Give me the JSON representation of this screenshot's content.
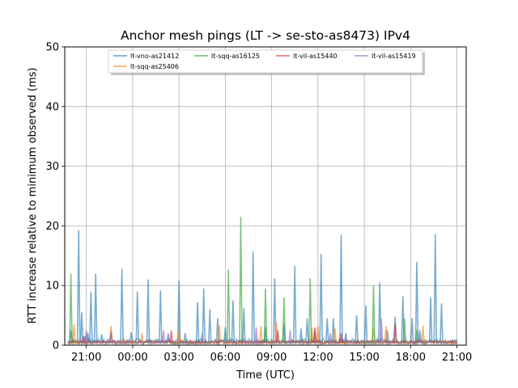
{
  "chart_data": {
    "type": "line",
    "title": "Anchor mesh pings (LT -> se-sto-as8473) IPv4",
    "xlabel": "Time (UTC)",
    "ylabel": "RTT increase relative to minimum observed (ms)",
    "xlim": [
      "19:36",
      "21:36 (+1 day)"
    ],
    "ylim": [
      0,
      50
    ],
    "grid": true,
    "legend_position": "top-center",
    "x_tick_labels": [
      "21:00",
      "00:00",
      "03:00",
      "06:00",
      "09:00",
      "12:00",
      "15:00",
      "18:00",
      "21:00"
    ],
    "y_tick_labels": [
      "0",
      "10",
      "20",
      "30",
      "40",
      "50"
    ],
    "x_unit_note": "hours since 21:00 day 1",
    "series": [
      {
        "name": "lt-vno-as21412",
        "color": "#1f77b4",
        "x": [
          -1.0,
          -0.5,
          -0.3,
          -0.1,
          0.1,
          0.3,
          0.6,
          1.0,
          1.6,
          2.3,
          2.9,
          3.3,
          4.0,
          4.8,
          5.3,
          6.0,
          6.4,
          7.2,
          7.6,
          8.0,
          8.5,
          9.0,
          9.5,
          10.2,
          10.8,
          11.6,
          12.2,
          12.8,
          13.5,
          13.9,
          14.3,
          14.8,
          15.2,
          15.6,
          16.0,
          16.5,
          16.8,
          17.5,
          18.1,
          19.0,
          19.5,
          20.0,
          20.5,
          21.1,
          21.4,
          21.6,
          22.3,
          22.6,
          23.0
        ],
        "y": [
          2.5,
          19.3,
          5.5,
          1.5,
          2.0,
          9.0,
          12.0,
          1.8,
          2.5,
          12.8,
          2.2,
          9.0,
          11.0,
          9.2,
          2.0,
          10.8,
          2.0,
          7.2,
          9.5,
          6.0,
          4.5,
          3.0,
          7.5,
          6.2,
          15.7,
          3.0,
          11.2,
          3.5,
          13.3,
          2.8,
          4.5,
          2.5,
          15.3,
          4.5,
          4.5,
          18.5,
          2.0,
          5.0,
          6.7,
          10.5,
          2.5,
          4.8,
          8.2,
          4.5,
          14.0,
          2.5,
          8.0,
          18.6,
          7.0
        ]
      },
      {
        "name": "lt-sqq-as25406",
        "color": "#ff7f0e",
        "x": [
          -0.8,
          1.6,
          3.6,
          6.0,
          8.6,
          11.3,
          12.3,
          14.6,
          15.0,
          16.1,
          18.6,
          19.4,
          21.8
        ],
        "y": [
          3.5,
          3.2,
          2.0,
          2.5,
          3.4,
          3.2,
          3.8,
          3.0,
          3.2,
          2.8,
          3.0,
          3.2,
          3.3
        ]
      },
      {
        "name": "lt-sqq-as16125",
        "color": "#2ca02c",
        "x": [
          -1.0,
          9.2,
          10.0,
          11.6,
          12.8,
          14.5,
          18.6,
          20.6,
          21.4
        ],
        "y": [
          12.0,
          12.7,
          21.5,
          9.5,
          8.0,
          11.2,
          10.0,
          4.5,
          2.5
        ]
      },
      {
        "name": "lt-vil-as15440",
        "color": "#d62728",
        "x": [
          -0.2,
          5.5,
          12.4,
          14.8,
          16.5,
          20.0
        ],
        "y": [
          1.5,
          2.5,
          2.5,
          3.0,
          2.0,
          3.5
        ]
      },
      {
        "name": "lt-vil-as15419",
        "color": "#9467bd",
        "x": [
          0.0,
          1.6,
          5.0,
          7.5,
          11.0,
          13.2,
          15.8,
          19.1
        ],
        "y": [
          2.5,
          2.0,
          2.5,
          2.0,
          3.0,
          2.5,
          2.0,
          4.5
        ]
      }
    ]
  }
}
